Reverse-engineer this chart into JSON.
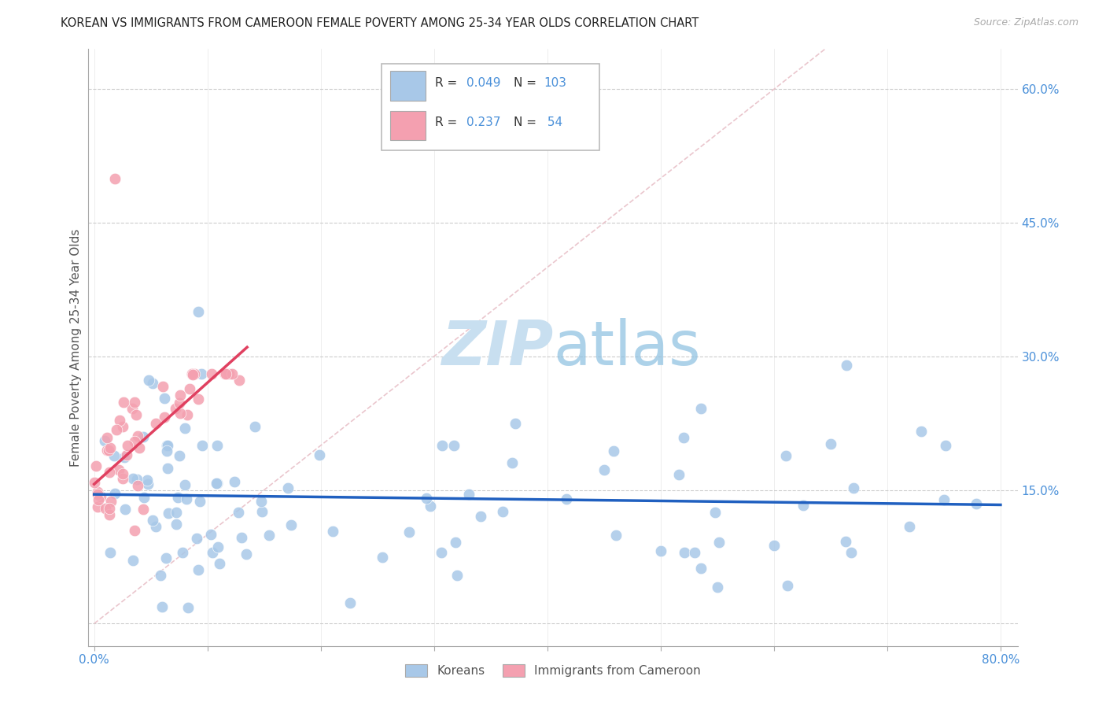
{
  "title": "KOREAN VS IMMIGRANTS FROM CAMEROON FEMALE POVERTY AMONG 25-34 YEAR OLDS CORRELATION CHART",
  "source": "Source: ZipAtlas.com",
  "ylabel": "Female Poverty Among 25-34 Year Olds",
  "color_korean": "#A8C8E8",
  "color_cameroon": "#F4A0B0",
  "trendline_color_korean": "#2060C0",
  "trendline_color_cameroon": "#E04060",
  "diag_line_color": "#E8C0C8",
  "grid_color": "#cccccc",
  "background_color": "#ffffff",
  "watermark_color": "#C8DFF0",
  "tick_label_color": "#4A90D9",
  "axis_label_color": "#555555",
  "title_color": "#222222",
  "source_color": "#aaaaaa"
}
